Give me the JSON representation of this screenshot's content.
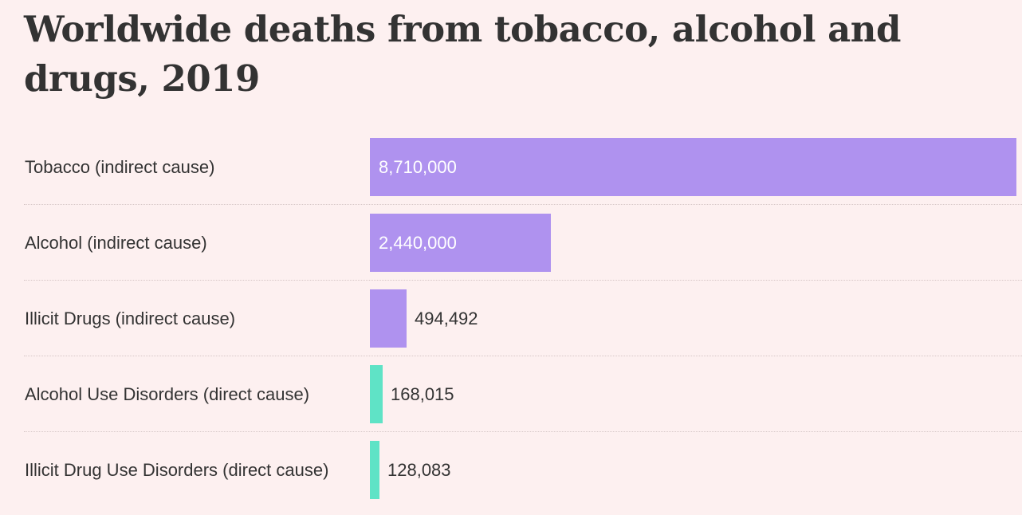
{
  "chart_data": {
    "type": "bar",
    "orientation": "horizontal",
    "title": "Worldwide deaths from tobacco, alcohol and drugs, 2019",
    "categories": [
      "Tobacco (indirect cause)",
      "Alcohol (indirect cause)",
      "Illicit Drugs (indirect cause)",
      "Alcohol Use Disorders (direct cause)",
      "Illicit Drug Use Disorders (direct cause)"
    ],
    "values": [
      8710000,
      2440000,
      494492,
      168015,
      128083
    ],
    "value_labels": [
      "8,710,000",
      "2,440,000",
      "494,492",
      "168,015",
      "128,083"
    ],
    "bar_colors": [
      "#af92ef",
      "#af92ef",
      "#af92ef",
      "#5fe3c6",
      "#5fe3c6"
    ],
    "xlim": [
      0,
      8710000
    ],
    "grid": false,
    "legend": "none"
  }
}
